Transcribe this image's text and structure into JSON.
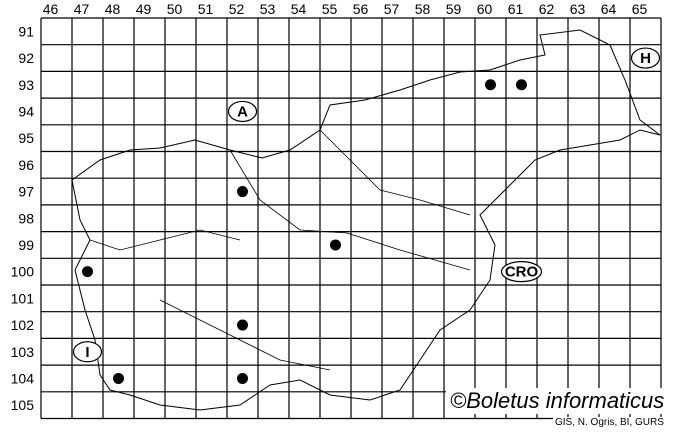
{
  "map": {
    "columns": [
      "46",
      "47",
      "48",
      "49",
      "50",
      "51",
      "52",
      "53",
      "54",
      "55",
      "56",
      "57",
      "58",
      "59",
      "60",
      "61",
      "62",
      "63",
      "64",
      "65"
    ],
    "rows": [
      "91",
      "92",
      "93",
      "94",
      "95",
      "96",
      "97",
      "98",
      "99",
      "100",
      "101",
      "102",
      "103",
      "104",
      "105"
    ],
    "country_labels": [
      {
        "text": "A",
        "col": 52,
        "row": 94
      },
      {
        "text": "H",
        "col": 65,
        "row": 92
      },
      {
        "text": "CRO",
        "col": 61,
        "row": 100
      },
      {
        "text": "I",
        "col": 47,
        "row": 103
      }
    ],
    "records": [
      {
        "col": 60,
        "row": 93
      },
      {
        "col": 61,
        "row": 93
      },
      {
        "col": 52,
        "row": 97
      },
      {
        "col": 55,
        "row": 99
      },
      {
        "col": 47,
        "row": 100
      },
      {
        "col": 52,
        "row": 102
      },
      {
        "col": 48,
        "row": 104
      },
      {
        "col": 52,
        "row": 104
      }
    ],
    "record_color": "#000000"
  },
  "copyright": "©Boletus informaticus",
  "credit": "GIS, N. Ogris, BI, GURS"
}
